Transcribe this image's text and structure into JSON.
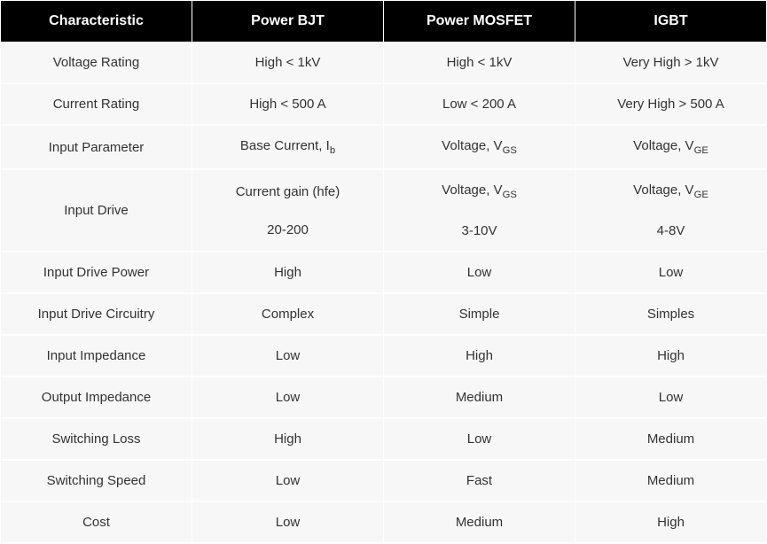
{
  "table": {
    "type": "table",
    "header_bg": "#000000",
    "header_fg": "#ffffff",
    "cell_bg": "#f7f7f7",
    "cell_fg": "#333333",
    "font_family": "Arial",
    "header_fontsize_pt": 12,
    "cell_fontsize_pt": 11,
    "columns": [
      "Characteristic",
      "Power BJT",
      "Power MOSFET",
      "IGBT"
    ],
    "rows": [
      {
        "label": "Voltage Rating",
        "bjt": "High < 1kV",
        "mosfet": "High < 1kV",
        "igbt": "Very High > 1kV"
      },
      {
        "label": "Current Rating",
        "bjt": "High < 500 A",
        "mosfet": "Low < 200 A",
        "igbt": "Very High > 500 A"
      },
      {
        "label": "Input Parameter",
        "bjt_html": "Base Current, I<sub>b</sub>",
        "mosfet_html": "Voltage, V<sub>GS</sub>",
        "igbt_html": "Voltage, V<sub>GE</sub>"
      },
      {
        "label": "Input Drive",
        "multiline": true,
        "bjt_line1": "Current gain (hfe)",
        "bjt_line2": "20-200",
        "mosfet_line1_html": "Voltage, V<sub>GS</sub>",
        "mosfet_line2": "3-10V",
        "igbt_line1_html": "Voltage, V<sub>GE</sub>",
        "igbt_line2": "4-8V"
      },
      {
        "label": "Input Drive Power",
        "bjt": "High",
        "mosfet": "Low",
        "igbt": "Low"
      },
      {
        "label": "Input Drive Circuitry",
        "bjt": "Complex",
        "mosfet": "Simple",
        "igbt": "Simples"
      },
      {
        "label": "Input Impedance",
        "bjt": "Low",
        "mosfet": "High",
        "igbt": "High"
      },
      {
        "label": "Output Impedance",
        "bjt": "Low",
        "mosfet": "Medium",
        "igbt": "Low"
      },
      {
        "label": "Switching Loss",
        "bjt": "High",
        "mosfet": "Low",
        "igbt": "Medium"
      },
      {
        "label": "Switching Speed",
        "bjt": "Low",
        "mosfet": "Fast",
        "igbt": "Medium"
      },
      {
        "label": "Cost",
        "bjt": "Low",
        "mosfet": "Medium",
        "igbt": "High"
      }
    ]
  }
}
